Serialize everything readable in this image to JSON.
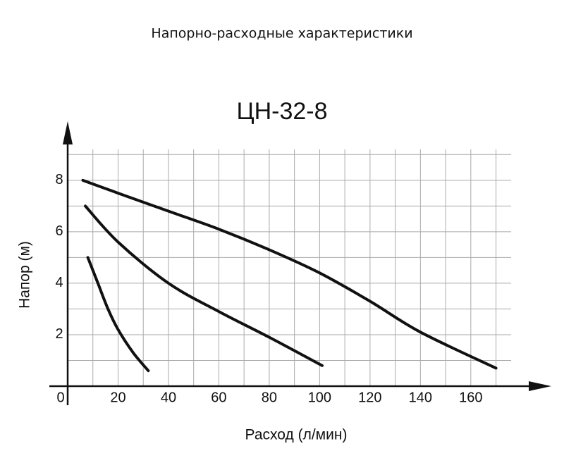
{
  "chart_data": {
    "type": "line",
    "title": "Напорно-расходные характеристики",
    "subtitle": "ЦН-32-8",
    "x_label": "Расход (л/мин)",
    "y_label": "Напор (м)",
    "xlim": [
      0,
      176
    ],
    "ylim": [
      0,
      9.2
    ],
    "xticks": [
      0,
      20,
      40,
      60,
      80,
      100,
      120,
      140,
      160
    ],
    "yticks": [
      2,
      4,
      6,
      8
    ],
    "x_gridlines": [
      10,
      20,
      30,
      40,
      50,
      60,
      70,
      80,
      90,
      100,
      110,
      120,
      130,
      140,
      150,
      160,
      170
    ],
    "y_gridlines": [
      1,
      2,
      3,
      4,
      5,
      6,
      7,
      8,
      9
    ],
    "grid": true,
    "series": [
      {
        "color": "#111111",
        "x": [
          8,
          12,
          16,
          20,
          26,
          32
        ],
        "values": [
          5.0,
          4.0,
          3.0,
          2.2,
          1.3,
          0.6
        ]
      },
      {
        "color": "#111111",
        "x": [
          7,
          20,
          40,
          60,
          80,
          101
        ],
        "values": [
          7.0,
          5.6,
          4.0,
          2.9,
          1.9,
          0.8
        ]
      },
      {
        "color": "#111111",
        "x": [
          6,
          20,
          40,
          60,
          80,
          100,
          120,
          140,
          170
        ],
        "values": [
          8.0,
          7.5,
          6.8,
          6.1,
          5.3,
          4.4,
          3.3,
          2.1,
          0.7
        ]
      }
    ]
  }
}
